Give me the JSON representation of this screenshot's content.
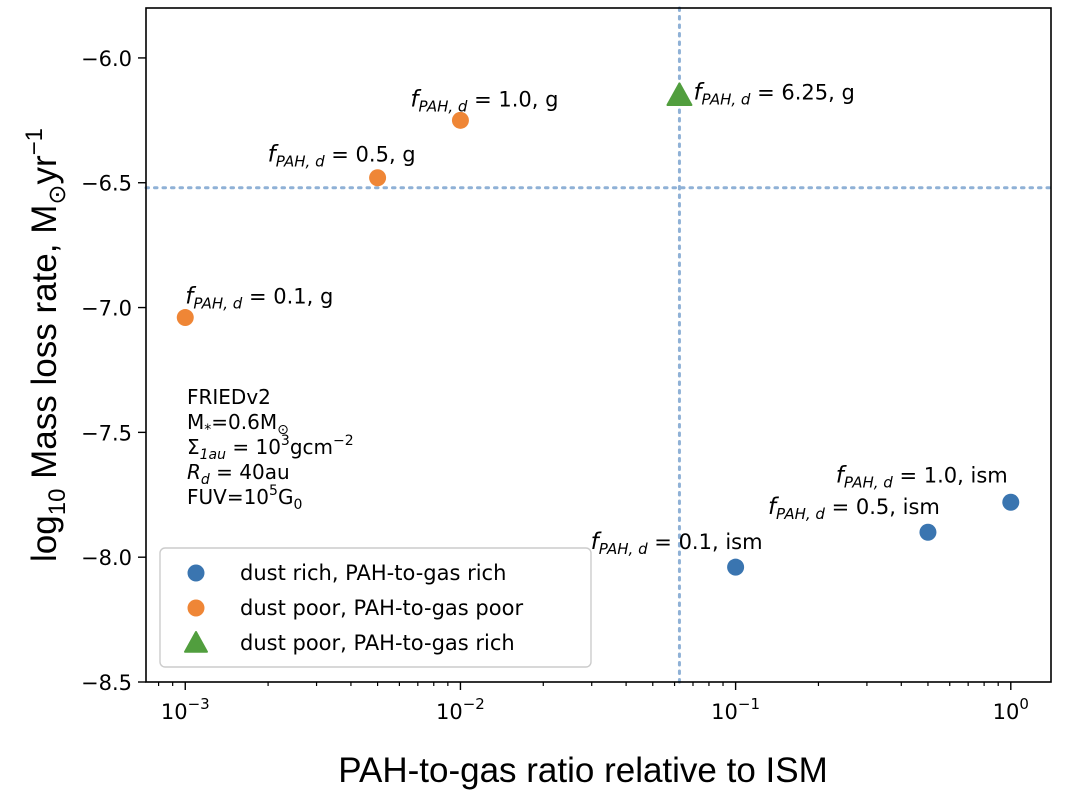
{
  "chart_data": {
    "type": "scatter",
    "xscale": "log",
    "xlim": [
      0.00072,
      1.4
    ],
    "ylim": [
      -8.5,
      -5.8
    ],
    "xlabel": "PAH-to-gas ratio relative to ISM",
    "ylabel": "log10 Mass loss rate, M⊙yr−1",
    "xticks": [
      {
        "value": 0.001,
        "base": "10",
        "exp": "−3"
      },
      {
        "value": 0.01,
        "base": "10",
        "exp": "−2"
      },
      {
        "value": 0.1,
        "base": "10",
        "exp": "−1"
      },
      {
        "value": 1,
        "base": "10",
        "exp": "0"
      }
    ],
    "yticks": [
      {
        "value": -6.0,
        "label": "−6.0"
      },
      {
        "value": -6.5,
        "label": "−6.5"
      },
      {
        "value": -7.0,
        "label": "−7.0"
      },
      {
        "value": -7.5,
        "label": "−7.5"
      },
      {
        "value": -8.0,
        "label": "−8.0"
      },
      {
        "value": -8.5,
        "label": "−8.5"
      }
    ],
    "reference_lines": {
      "vertical_x": 0.0625,
      "horizontal_y": -6.52
    },
    "series": [
      {
        "name": "dust rich, PAH-to-gas rich",
        "color": "#3a75b0",
        "marker": "circle",
        "points": [
          {
            "x": 0.1,
            "y": -8.04,
            "f": "0.1",
            "suffix": ", ism"
          },
          {
            "x": 0.5,
            "y": -7.9,
            "f": "0.5",
            "suffix": ", ism"
          },
          {
            "x": 1.0,
            "y": -7.78,
            "f": "1.0",
            "suffix": ", ism"
          }
        ]
      },
      {
        "name": "dust poor, PAH-to-gas poor",
        "color": "#ef8636",
        "marker": "circle",
        "points": [
          {
            "x": 0.001,
            "y": -7.04,
            "f": "0.1",
            "suffix": ", g"
          },
          {
            "x": 0.005,
            "y": -6.48,
            "f": "0.5",
            "suffix": ", g"
          },
          {
            "x": 0.01,
            "y": -6.25,
            "f": "1.0",
            "suffix": ", g"
          }
        ]
      },
      {
        "name": "dust poor, PAH-to-gas rich",
        "color": "#519e3e",
        "marker": "triangle",
        "points": [
          {
            "x": 0.0625,
            "y": -6.15,
            "f": "6.25",
            "suffix": ", g"
          }
        ]
      }
    ],
    "annotation_symbol": {
      "f": "f",
      "sub": "PAH, d"
    },
    "info_box": {
      "line1": "FRIEDv2",
      "line2_a": "M",
      "line2_sub": "*",
      "line2_b": "=0.6M",
      "line2_sub2": "⊙",
      "line3_a": "Σ",
      "line3_sub": "1au",
      "line3_b": " = 10",
      "line3_sup": "3",
      "line3_c": "gcm",
      "line3_sup2": "−2",
      "line4_a": "R",
      "line4_sub": "d",
      "line4_b": " = 40au",
      "line5_a": "FUV=10",
      "line5_sup": "5",
      "line5_b": "G",
      "line5_sub": "0"
    },
    "legend": {
      "position": "lower-left"
    }
  }
}
